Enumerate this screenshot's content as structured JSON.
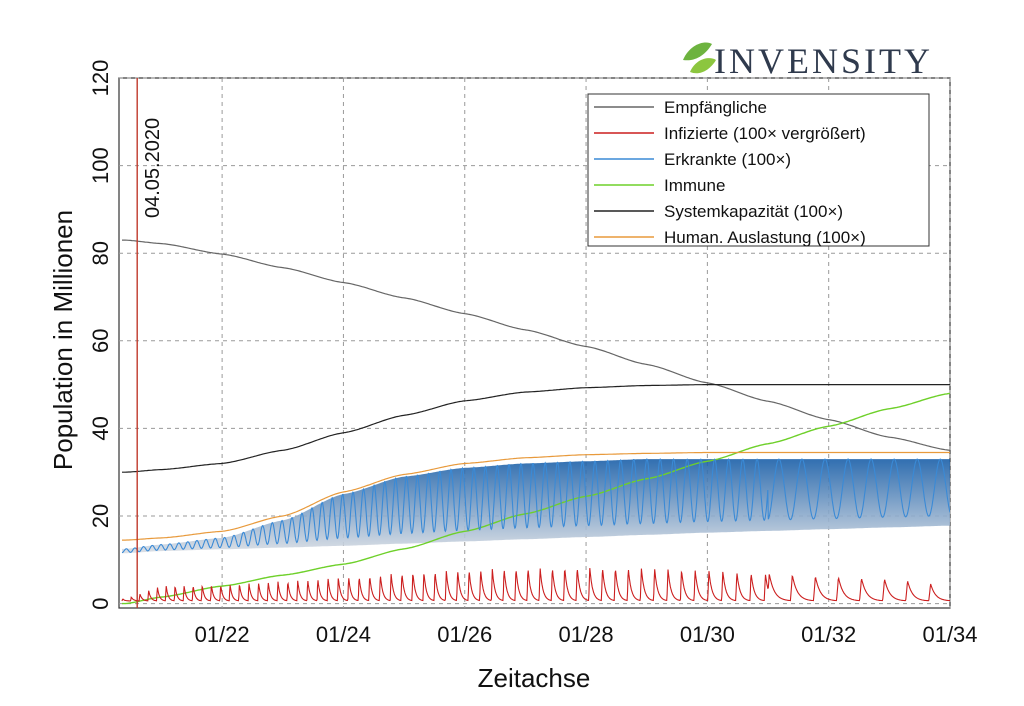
{
  "logo": {
    "text": "INVENSITY",
    "leaf_color": "#6db33f"
  },
  "chart_data": {
    "type": "line",
    "xlabel": "Zeitachse",
    "ylabel": "Population in Millionen",
    "xlim": [
      20.3,
      34.0
    ],
    "ylim": [
      -1,
      120
    ],
    "x_ticks": [
      22,
      24,
      26,
      28,
      30,
      32,
      34
    ],
    "x_tick_labels": [
      "01/22",
      "01/24",
      "01/26",
      "01/28",
      "01/30",
      "01/32",
      "01/34"
    ],
    "y_ticks": [
      0,
      20,
      40,
      60,
      80,
      100,
      120
    ],
    "y_tick_labels": [
      "0",
      "20",
      "40",
      "60",
      "80",
      "100",
      "120"
    ],
    "grid": true,
    "legend_position": "top-right",
    "marker": {
      "x": 20.6,
      "label": "04.05.2020",
      "color": "#c0392b"
    },
    "series": [
      {
        "name": "Empfängliche",
        "color": "#666666",
        "x": [
          20.4,
          21,
          22,
          23,
          24,
          25,
          26,
          27,
          28,
          29,
          30,
          31,
          32,
          33,
          34
        ],
        "y": [
          83,
          82.2,
          79.8,
          76.7,
          73.3,
          69.8,
          66.2,
          62.5,
          58.7,
          54.6,
          50.4,
          46.2,
          42.0,
          38.0,
          35.0
        ]
      },
      {
        "name": "Infizierte (100× vergrößert)",
        "color": "#cc1f1f",
        "x": [
          20.4,
          21,
          22,
          23,
          24,
          25,
          26,
          27,
          28,
          29,
          30,
          31,
          32,
          33,
          34
        ],
        "y": [
          0.5,
          3.5,
          3.8,
          4.5,
          5.5,
          6.5,
          7.2,
          7.6,
          7.8,
          7.5,
          7.0,
          6.2,
          5.5,
          5.0,
          3.5
        ]
      },
      {
        "name": "Erkrankte (100×)",
        "color": "#3a8ad6",
        "x": [
          20.4,
          21,
          22,
          23,
          24,
          25,
          26,
          27,
          28,
          29,
          30,
          31,
          32,
          33,
          34
        ],
        "y": [
          12.5,
          13.5,
          15.0,
          19.0,
          25.0,
          29.0,
          31.0,
          32.0,
          32.5,
          33.0,
          33.0,
          33.0,
          33.0,
          33.0,
          33.0
        ],
        "y_min": [
          11.5,
          12.0,
          12.4,
          12.8,
          13.2,
          13.7,
          14.2,
          14.7,
          15.2,
          15.7,
          16.2,
          16.6,
          17.0,
          17.4,
          17.8
        ]
      },
      {
        "name": "Immune",
        "color": "#6ed02a",
        "x": [
          20.4,
          21,
          22,
          23,
          24,
          25,
          26,
          27,
          28,
          29,
          30,
          31,
          32,
          33,
          34
        ],
        "y": [
          0,
          1.5,
          4.0,
          6.5,
          9.0,
          12.5,
          16.5,
          20.5,
          24.5,
          28.5,
          32.5,
          36.5,
          40.5,
          44.5,
          48.0
        ]
      },
      {
        "name": "Systemkapazität (100×)",
        "color": "#222222",
        "x": [
          20.4,
          21,
          22,
          23,
          24,
          25,
          26,
          27,
          28,
          29,
          30,
          31,
          32,
          33,
          34
        ],
        "y": [
          30,
          30.6,
          32.0,
          35.0,
          39.0,
          43.0,
          46.3,
          48.3,
          49.3,
          49.8,
          50.0,
          50.0,
          50.0,
          50.0,
          50.0
        ]
      },
      {
        "name": "Human. Auslastung (100×)",
        "color": "#e89a3c",
        "x": [
          20.4,
          21,
          22,
          23,
          24,
          25,
          26,
          27,
          28,
          29,
          30,
          31,
          32,
          33,
          34
        ],
        "y": [
          14.5,
          15.0,
          16.5,
          20.0,
          25.5,
          29.5,
          32.0,
          33.3,
          34.0,
          34.3,
          34.5,
          34.5,
          34.5,
          34.5,
          34.5
        ]
      }
    ]
  }
}
